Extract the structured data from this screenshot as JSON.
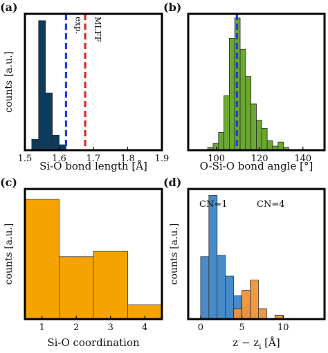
{
  "chart_data": [
    {
      "id": "a",
      "panel_label": "(a)",
      "type": "histogram",
      "xlabel": "Si-O bond length [Å]",
      "ylabel": "counts [a.u.]",
      "xlim": [
        1.5,
        1.9
      ],
      "ylim": [
        0,
        1.0
      ],
      "x_ticks": [
        1.5,
        1.6,
        1.7,
        1.8,
        1.9
      ],
      "x_tick_labels": [
        "1.5",
        "1.6",
        "1.7",
        "1.8",
        "1.9"
      ],
      "bins": [
        {
          "x0": 1.52,
          "x1": 1.54,
          "value": 0.08
        },
        {
          "x0": 1.54,
          "x1": 1.56,
          "value": 0.95
        },
        {
          "x0": 1.56,
          "x1": 1.58,
          "value": 0.42
        },
        {
          "x0": 1.58,
          "x1": 1.6,
          "value": 0.11
        },
        {
          "x0": 1.6,
          "x1": 1.62,
          "value": 0.04
        }
      ],
      "bar_color": "#0d3b5e",
      "vlines": [
        {
          "x": 1.62,
          "label": "exp.",
          "color": "#1f3fd6"
        },
        {
          "x": 1.676,
          "label": "MLFF",
          "color": "#e0252b"
        }
      ]
    },
    {
      "id": "b",
      "panel_label": "(b)",
      "type": "histogram",
      "xlabel": "O-Si-O bond angle [°]",
      "ylabel": "",
      "xlim": [
        87,
        150
      ],
      "ylim": [
        0,
        1.0
      ],
      "x_ticks": [
        100,
        120,
        140
      ],
      "x_tick_labels": [
        "100",
        "120",
        "140"
      ],
      "bins": [
        {
          "x0": 96,
          "x1": 98.5,
          "value": 0.02
        },
        {
          "x0": 98.5,
          "x1": 101,
          "value": 0.05
        },
        {
          "x0": 101,
          "x1": 103.5,
          "value": 0.13
        },
        {
          "x0": 103.5,
          "x1": 106,
          "value": 0.4
        },
        {
          "x0": 106,
          "x1": 108.5,
          "value": 0.82
        },
        {
          "x0": 108.5,
          "x1": 111,
          "value": 0.97
        },
        {
          "x0": 111,
          "x1": 113.5,
          "value": 0.74
        },
        {
          "x0": 113.5,
          "x1": 116,
          "value": 0.54
        },
        {
          "x0": 116,
          "x1": 118.5,
          "value": 0.34
        },
        {
          "x0": 118.5,
          "x1": 121,
          "value": 0.22
        },
        {
          "x0": 121,
          "x1": 123.5,
          "value": 0.16
        },
        {
          "x0": 123.5,
          "x1": 126,
          "value": 0.07
        },
        {
          "x0": 126,
          "x1": 128.5,
          "value": 0.03
        },
        {
          "x0": 128.5,
          "x1": 131,
          "value": 0.06
        },
        {
          "x0": 131,
          "x1": 133.5,
          "value": 0.02
        }
      ],
      "bar_color": "#6aa832",
      "vlines": [
        {
          "x": 109.5,
          "label": "",
          "color": "#1f3fd6"
        }
      ]
    },
    {
      "id": "c",
      "panel_label": "(c)",
      "type": "bar",
      "xlabel": "Si-O coordination",
      "ylabel": "counts [a.u.]",
      "xlim": [
        0.5,
        4.5
      ],
      "ylim": [
        0,
        1.0
      ],
      "x_ticks": [
        1,
        2,
        3,
        4
      ],
      "x_tick_labels": [
        "1",
        "2",
        "3",
        "4"
      ],
      "categories": [
        1,
        2,
        3,
        4
      ],
      "values": [
        0.92,
        0.48,
        0.52,
        0.11
      ],
      "bar_color": "#f5a300"
    },
    {
      "id": "d",
      "panel_label": "(d)",
      "type": "histogram",
      "xlabel": "z − zi [Å]",
      "ylabel": "counts [a.u.]",
      "xlim": [
        -1.5,
        15
      ],
      "ylim": [
        0,
        1.0
      ],
      "x_ticks": [
        0,
        5,
        10
      ],
      "x_tick_labels": [
        "0",
        "5",
        "10"
      ],
      "series": [
        {
          "name": "CN=1",
          "color": "#3d86c6",
          "bins": [
            {
              "x0": 0,
              "x1": 1,
              "value": 0.48
            },
            {
              "x0": 1,
              "x1": 2,
              "value": 0.95
            },
            {
              "x0": 2,
              "x1": 3,
              "value": 0.49
            },
            {
              "x0": 3,
              "x1": 4,
              "value": 0.33
            },
            {
              "x0": 4,
              "x1": 5,
              "value": 0.18
            },
            {
              "x0": 5,
              "x1": 6,
              "value": 0.1
            }
          ]
        },
        {
          "name": "CN=4",
          "color": "#f0943a",
          "bins": [
            {
              "x0": 4,
              "x1": 5,
              "value": 0.08
            },
            {
              "x0": 5,
              "x1": 6,
              "value": 0.22
            },
            {
              "x0": 6,
              "x1": 7,
              "value": 0.3
            },
            {
              "x0": 7,
              "x1": 8,
              "value": 0.08
            },
            {
              "x0": 9,
              "x1": 10,
              "value": 0.03
            }
          ]
        }
      ]
    }
  ]
}
